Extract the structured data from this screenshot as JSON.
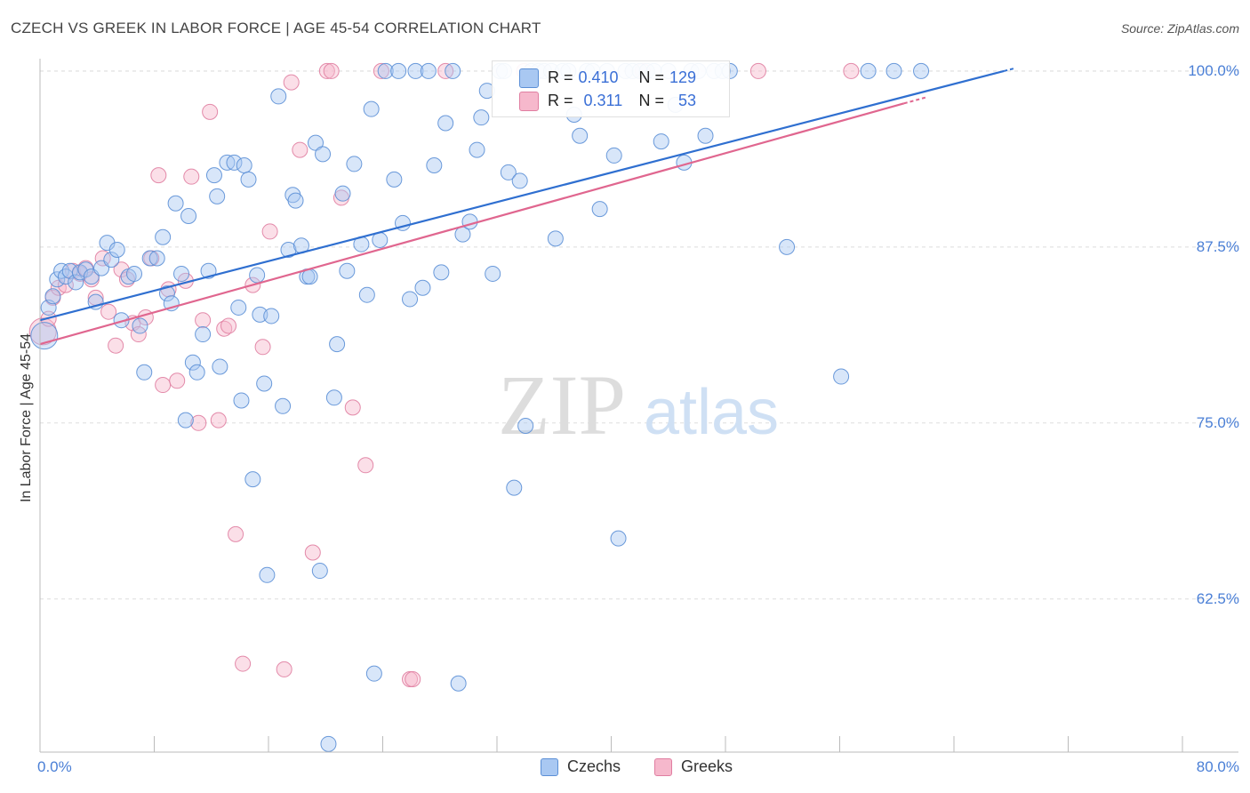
{
  "header": {
    "title": "CZECH VS GREEK IN LABOR FORCE | AGE 45-54 CORRELATION CHART",
    "source": "Source: ZipAtlas.com"
  },
  "colors": {
    "czechs_fill": "#a9c8f2",
    "czechs_stroke": "#5b8fd6",
    "czechs_line": "#2f6fd0",
    "greeks_fill": "#f6b8cc",
    "greeks_stroke": "#e07ea1",
    "greeks_line": "#e0668f",
    "tick_label": "#4a7fd6",
    "grid": "#dddddd"
  },
  "legend": {
    "czechs": {
      "r_label": "R =",
      "r_value": "0.410",
      "n_label": "N =",
      "n_value": "129"
    },
    "greeks": {
      "r_label": "R =",
      "r_value": "0.311",
      "n_label": "N =",
      "n_value": "53"
    }
  },
  "bottom_legend": {
    "czechs": "Czechs",
    "greeks": "Greeks"
  },
  "watermark": {
    "zip": "ZIP",
    "atlas": "atlas"
  },
  "chart_data": {
    "type": "scatter",
    "title": "CZECH VS GREEK IN LABOR FORCE | AGE 45-54 CORRELATION CHART",
    "xlabel": "",
    "ylabel": "In Labor Force | Age 45-54",
    "xlim": [
      0,
      80
    ],
    "ylim": [
      52,
      100.5
    ],
    "x_tick_labels": [
      "0.0%",
      "80.0%"
    ],
    "y_ticks": [
      62.5,
      75.0,
      87.5,
      100.0
    ],
    "y_tick_labels": [
      "62.5%",
      "75.0%",
      "87.5%",
      "100.0%"
    ],
    "grid": true,
    "legend_position": "top-center",
    "series": [
      {
        "name": "Czechs",
        "r": 0.41,
        "n": 129,
        "trend": {
          "x": [
            0,
            67.5
          ],
          "y": [
            82.3,
            100.0
          ]
        },
        "points": [
          [
            0.3,
            81.2
          ],
          [
            0.6,
            83.2
          ],
          [
            0.9,
            84.0
          ],
          [
            1.2,
            85.2
          ],
          [
            1.5,
            85.8
          ],
          [
            1.8,
            85.4
          ],
          [
            2.1,
            85.8
          ],
          [
            2.5,
            85.0
          ],
          [
            2.8,
            85.7
          ],
          [
            3.2,
            85.9
          ],
          [
            3.6,
            85.4
          ],
          [
            3.9,
            83.6
          ],
          [
            4.3,
            86.0
          ],
          [
            4.7,
            87.8
          ],
          [
            5.0,
            86.6
          ],
          [
            5.4,
            87.3
          ],
          [
            5.7,
            82.3
          ],
          [
            6.2,
            85.4
          ],
          [
            6.6,
            85.6
          ],
          [
            7.0,
            81.9
          ],
          [
            7.3,
            78.6
          ],
          [
            7.7,
            86.7
          ],
          [
            8.2,
            86.7
          ],
          [
            8.6,
            88.2
          ],
          [
            8.9,
            84.2
          ],
          [
            9.2,
            83.5
          ],
          [
            9.5,
            90.6
          ],
          [
            9.9,
            85.6
          ],
          [
            10.2,
            75.2
          ],
          [
            10.4,
            89.7
          ],
          [
            10.7,
            79.3
          ],
          [
            11.0,
            78.6
          ],
          [
            11.4,
            81.3
          ],
          [
            11.8,
            85.8
          ],
          [
            12.2,
            92.6
          ],
          [
            12.4,
            91.1
          ],
          [
            12.6,
            79.0
          ],
          [
            13.1,
            93.5
          ],
          [
            13.6,
            93.5
          ],
          [
            13.9,
            83.2
          ],
          [
            14.1,
            76.6
          ],
          [
            14.3,
            93.3
          ],
          [
            14.6,
            92.3
          ],
          [
            14.9,
            71.0
          ],
          [
            15.2,
            85.5
          ],
          [
            15.4,
            82.7
          ],
          [
            15.7,
            77.8
          ],
          [
            15.9,
            64.2
          ],
          [
            16.2,
            82.6
          ],
          [
            16.7,
            98.2
          ],
          [
            17.0,
            76.2
          ],
          [
            17.4,
            87.3
          ],
          [
            17.7,
            91.2
          ],
          [
            17.9,
            90.8
          ],
          [
            18.3,
            87.6
          ],
          [
            18.7,
            85.4
          ],
          [
            18.9,
            85.4
          ],
          [
            19.3,
            94.9
          ],
          [
            19.6,
            64.5
          ],
          [
            19.8,
            94.1
          ],
          [
            20.2,
            52.2
          ],
          [
            20.6,
            76.8
          ],
          [
            20.8,
            80.6
          ],
          [
            21.2,
            91.3
          ],
          [
            21.5,
            85.8
          ],
          [
            22.0,
            93.4
          ],
          [
            22.5,
            87.7
          ],
          [
            22.9,
            84.1
          ],
          [
            23.2,
            97.3
          ],
          [
            23.4,
            57.2
          ],
          [
            23.8,
            88.0
          ],
          [
            24.2,
            100.0
          ],
          [
            24.8,
            92.3
          ],
          [
            25.1,
            100.0
          ],
          [
            25.4,
            89.2
          ],
          [
            25.9,
            83.8
          ],
          [
            26.3,
            100.0
          ],
          [
            26.8,
            84.6
          ],
          [
            27.2,
            100.0
          ],
          [
            27.6,
            93.3
          ],
          [
            28.1,
            85.7
          ],
          [
            28.4,
            96.3
          ],
          [
            28.9,
            100.0
          ],
          [
            29.3,
            56.5
          ],
          [
            29.6,
            88.4
          ],
          [
            30.1,
            89.3
          ],
          [
            30.6,
            94.4
          ],
          [
            30.9,
            96.7
          ],
          [
            31.3,
            98.6
          ],
          [
            31.7,
            85.6
          ],
          [
            32.2,
            100.0
          ],
          [
            32.5,
            100.0
          ],
          [
            32.8,
            92.8
          ],
          [
            33.2,
            70.4
          ],
          [
            33.6,
            92.2
          ],
          [
            34.0,
            74.8
          ],
          [
            34.4,
            100.0
          ],
          [
            34.9,
            100.0
          ],
          [
            35.3,
            100.0
          ],
          [
            35.8,
            100.0
          ],
          [
            36.1,
            88.1
          ],
          [
            36.6,
            100.0
          ],
          [
            37.0,
            100.0
          ],
          [
            37.4,
            96.9
          ],
          [
            37.8,
            95.4
          ],
          [
            38.3,
            100.0
          ],
          [
            38.7,
            100.0
          ],
          [
            39.2,
            90.2
          ],
          [
            39.7,
            100.0
          ],
          [
            40.2,
            94.0
          ],
          [
            40.5,
            66.8
          ],
          [
            41.0,
            100.0
          ],
          [
            41.5,
            100.0
          ],
          [
            42.0,
            100.0
          ],
          [
            42.5,
            100.0
          ],
          [
            43.0,
            100.0
          ],
          [
            43.5,
            95.0
          ],
          [
            44.0,
            100.0
          ],
          [
            44.5,
            97.6
          ],
          [
            45.1,
            93.5
          ],
          [
            45.6,
            100.0
          ],
          [
            46.1,
            100.0
          ],
          [
            46.6,
            95.4
          ],
          [
            47.2,
            100.0
          ],
          [
            47.8,
            100.0
          ],
          [
            48.3,
            100.0
          ],
          [
            52.3,
            87.5
          ],
          [
            56.1,
            78.3
          ],
          [
            58.0,
            100.0
          ],
          [
            59.8,
            100.0
          ],
          [
            61.7,
            100.0
          ]
        ]
      },
      {
        "name": "Greeks",
        "r": 0.311,
        "n": 53,
        "trend": {
          "x": [
            0,
            60.5
          ],
          "y": [
            80.6,
            97.7
          ]
        },
        "points": [
          [
            0.2,
            81.5
          ],
          [
            0.6,
            82.4
          ],
          [
            0.9,
            83.9
          ],
          [
            1.3,
            84.6
          ],
          [
            1.8,
            84.8
          ],
          [
            2.3,
            85.8
          ],
          [
            2.8,
            85.6
          ],
          [
            3.2,
            86.0
          ],
          [
            3.6,
            85.2
          ],
          [
            3.9,
            83.9
          ],
          [
            4.4,
            86.7
          ],
          [
            4.8,
            82.9
          ],
          [
            5.3,
            80.5
          ],
          [
            5.7,
            85.9
          ],
          [
            6.1,
            85.2
          ],
          [
            6.5,
            82.1
          ],
          [
            6.9,
            81.3
          ],
          [
            7.4,
            82.5
          ],
          [
            7.8,
            86.7
          ],
          [
            8.3,
            92.6
          ],
          [
            8.6,
            77.7
          ],
          [
            9.0,
            84.5
          ],
          [
            9.6,
            78.0
          ],
          [
            10.2,
            85.1
          ],
          [
            10.6,
            92.5
          ],
          [
            11.1,
            75.0
          ],
          [
            11.4,
            82.3
          ],
          [
            11.9,
            97.1
          ],
          [
            12.5,
            75.2
          ],
          [
            12.9,
            81.7
          ],
          [
            13.2,
            81.9
          ],
          [
            13.7,
            67.1
          ],
          [
            14.2,
            57.9
          ],
          [
            14.9,
            84.8
          ],
          [
            15.6,
            80.4
          ],
          [
            16.1,
            88.6
          ],
          [
            17.1,
            57.5
          ],
          [
            17.6,
            99.2
          ],
          [
            18.2,
            94.4
          ],
          [
            19.1,
            65.8
          ],
          [
            20.1,
            100.0
          ],
          [
            20.4,
            100.0
          ],
          [
            21.1,
            91.0
          ],
          [
            21.9,
            76.1
          ],
          [
            22.8,
            72.0
          ],
          [
            23.9,
            100.0
          ],
          [
            25.9,
            56.8
          ],
          [
            26.1,
            56.8
          ],
          [
            28.4,
            100.0
          ],
          [
            33.9,
            100.0
          ],
          [
            42.2,
            100.0
          ],
          [
            50.3,
            100.0
          ],
          [
            56.8,
            100.0
          ]
        ]
      }
    ]
  }
}
